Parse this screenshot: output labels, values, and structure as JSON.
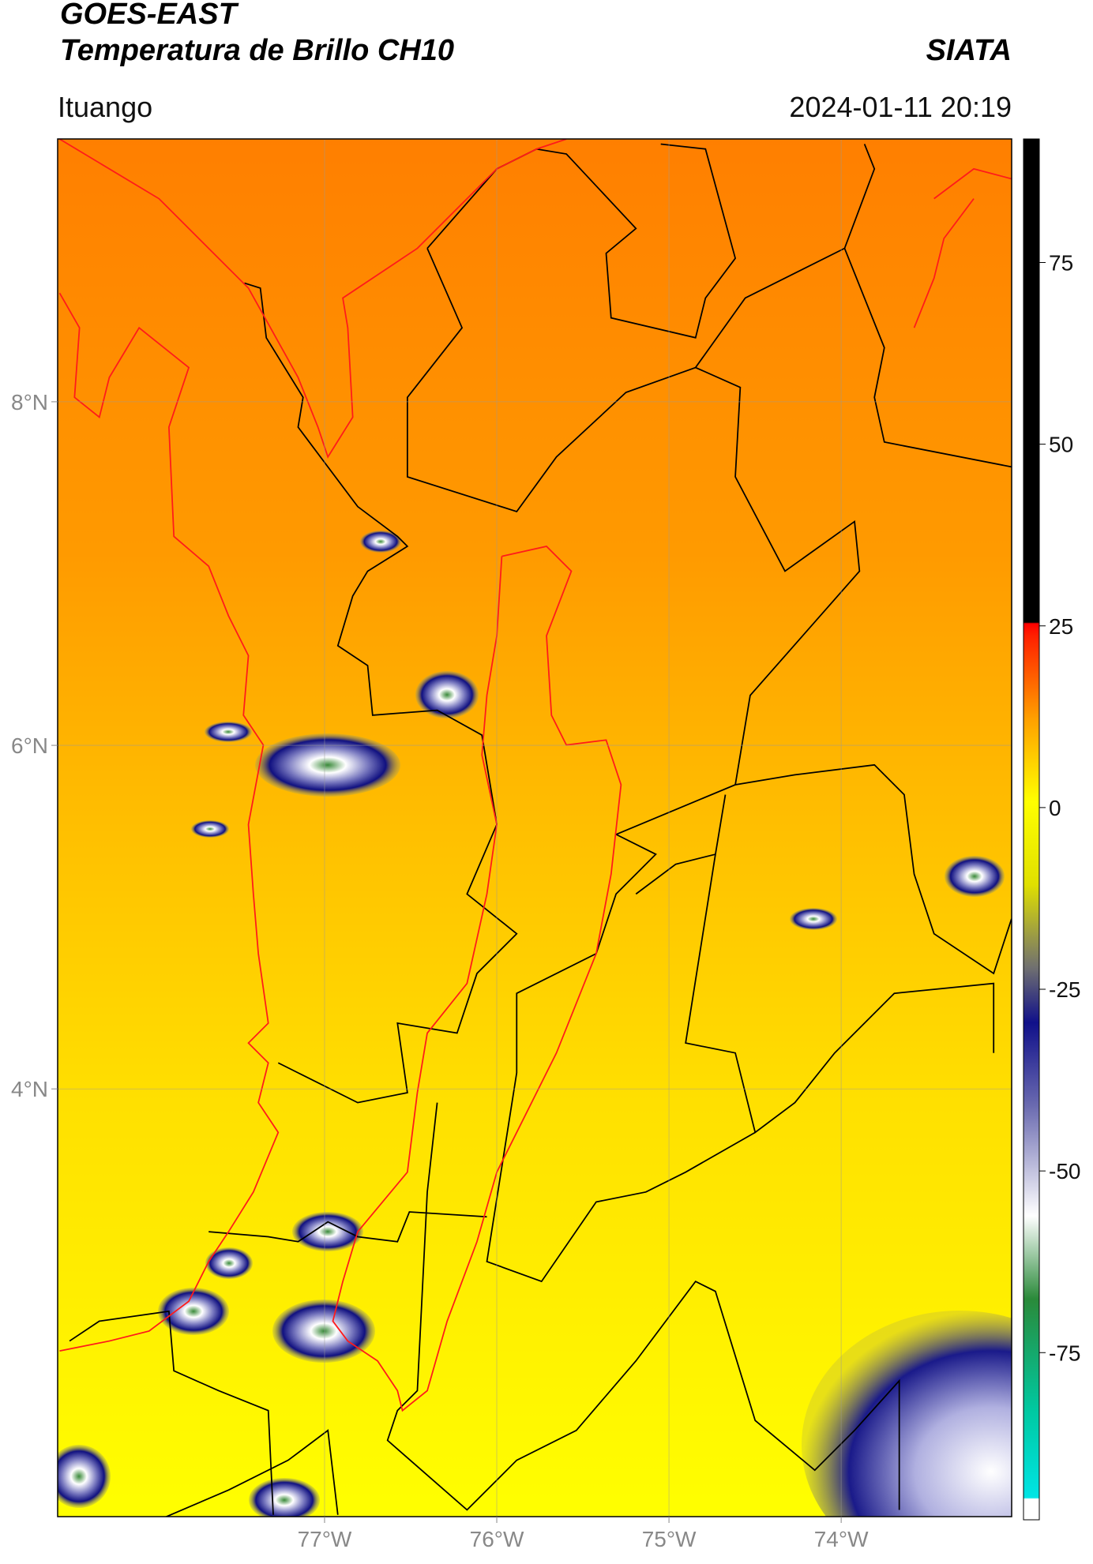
{
  "header": {
    "title": "GOES-EAST",
    "subtitle": "Temperatura de Brillo CH10",
    "brand": "SIATA",
    "location": "Ituango",
    "datetime": "2024-01-11 20:19"
  },
  "chart_data": {
    "type": "map",
    "xlim": [
      -78.55,
      -73.01
    ],
    "ylim": [
      1.51,
      9.53
    ],
    "xticks": [
      {
        "value": -77,
        "label": "77°W"
      },
      {
        "value": -76,
        "label": "76°W"
      },
      {
        "value": -75,
        "label": "75°W"
      },
      {
        "value": -74,
        "label": "74°W"
      }
    ],
    "yticks": [
      {
        "value": 4,
        "label": "4°N"
      },
      {
        "value": 6,
        "label": "6°N"
      },
      {
        "value": 8,
        "label": "8°N"
      }
    ],
    "grid": true,
    "colorbar": {
      "lim": [
        -98,
        92
      ],
      "ticks": [
        -75,
        -50,
        -25,
        0,
        25,
        50,
        75
      ]
    }
  }
}
